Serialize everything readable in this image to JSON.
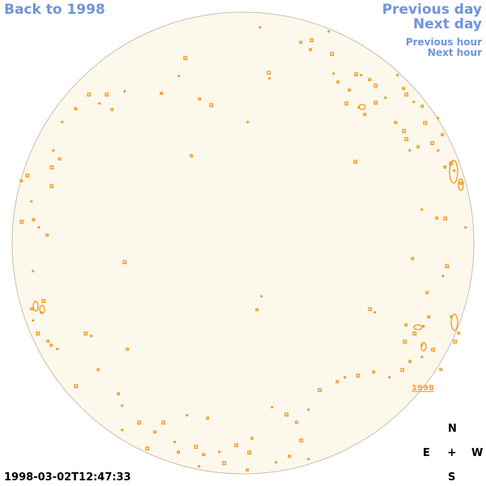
{
  "nav": {
    "back": "Back to 1998",
    "previous_day": "Previous day",
    "next_day": "Next day",
    "previous_hour": "Previous hour",
    "next_hour": "Next hour"
  },
  "timestamp": "1998-03-02T12:47:33",
  "disk_link": "1998",
  "compass": {
    "n": "N",
    "e": "E",
    "center": "+",
    "w": "W",
    "s": "S"
  },
  "colors": {
    "disk_fill": "#fdf8ec",
    "disk_edge": "#c8c0b0",
    "feature": "#f0910a",
    "nav": "#6f95d8"
  }
}
